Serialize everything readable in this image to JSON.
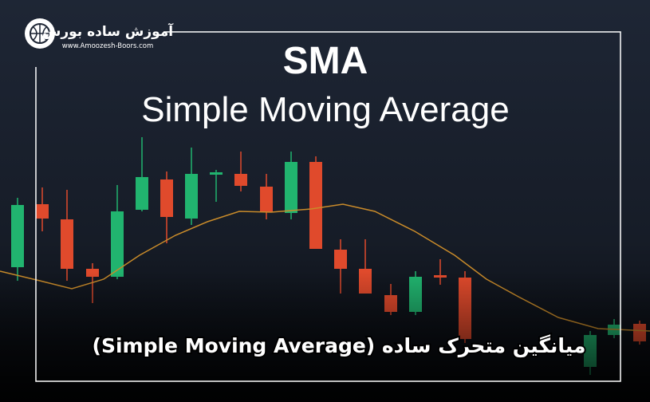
{
  "logo": {
    "name": "آموزش ساده بورس",
    "url": "www.Amoozesh-Boors.com"
  },
  "header": {
    "title": "SMA",
    "subtitle": "Simple Moving Average"
  },
  "caption": "میانگین متحرک ساده (Simple Moving Average)"
}
